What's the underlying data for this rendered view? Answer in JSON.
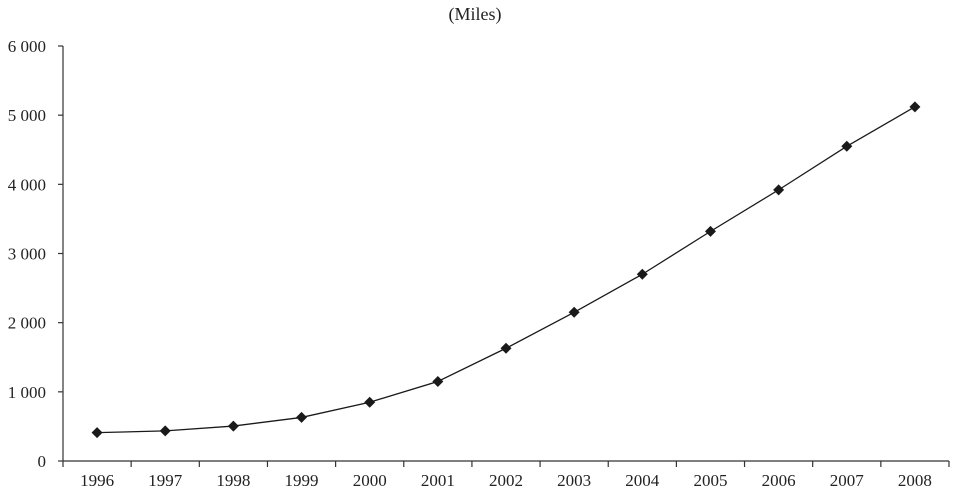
{
  "chart_data": {
    "type": "line",
    "title": "(Miles)",
    "xlabel": "",
    "ylabel": "",
    "categories": [
      "1996",
      "1997",
      "1998",
      "1999",
      "2000",
      "2001",
      "2002",
      "2003",
      "2004",
      "2005",
      "2006",
      "2007",
      "2008"
    ],
    "series": [
      {
        "name": "Miles",
        "values": [
          410,
          435,
          505,
          630,
          850,
          1150,
          1630,
          2150,
          2700,
          3320,
          3920,
          4550,
          5120
        ],
        "marker": "diamond",
        "color": "#1a1a1a"
      }
    ],
    "ylim": [
      0,
      6000
    ],
    "yticks": [
      0,
      1000,
      2000,
      3000,
      4000,
      5000,
      6000
    ],
    "ytick_labels": [
      "0",
      "1 000",
      "2 000",
      "3 000",
      "4 000",
      "5 000",
      "6 000"
    ],
    "grid": false,
    "legend": "none"
  }
}
